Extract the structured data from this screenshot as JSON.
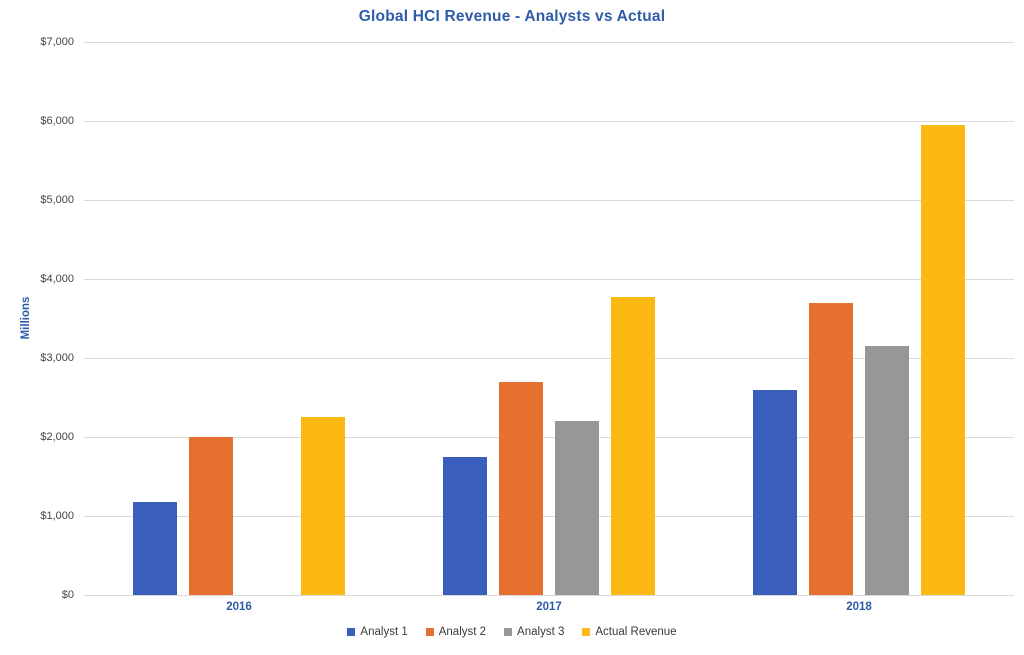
{
  "chart_data": {
    "type": "bar",
    "title": "Global HCI Revenue - Analysts vs Actual",
    "ylabel": "Millions",
    "categories": [
      "2016",
      "2017",
      "2018"
    ],
    "series": [
      {
        "name": "Analyst 1",
        "color": "#3A5EBC",
        "values": [
          1175,
          1750,
          2600
        ]
      },
      {
        "name": "Analyst 2",
        "color": "#E6702E",
        "values": [
          2000,
          2700,
          3700
        ]
      },
      {
        "name": "Analyst 3",
        "color": "#979797",
        "values": [
          null,
          2200,
          3150
        ]
      },
      {
        "name": "Actual Revenue",
        "color": "#FDB913",
        "values": [
          2250,
          3770,
          5950
        ]
      }
    ],
    "ylim": [
      0,
      7000
    ],
    "ytick_step": 1000,
    "ytick_labels": [
      "$0",
      "$1,000",
      "$2,000",
      "$3,000",
      "$4,000",
      "$5,000",
      "$6,000",
      "$7,000"
    ],
    "grid": true,
    "legend_position": "bottom",
    "colors": {
      "title": "#2F5CA8",
      "axis_label": "#2F5CA8",
      "tick_text": "#444444",
      "gridline": "#D9D9D9",
      "legend_text": "#3A3A3A",
      "background": "#FFFFFF"
    }
  }
}
